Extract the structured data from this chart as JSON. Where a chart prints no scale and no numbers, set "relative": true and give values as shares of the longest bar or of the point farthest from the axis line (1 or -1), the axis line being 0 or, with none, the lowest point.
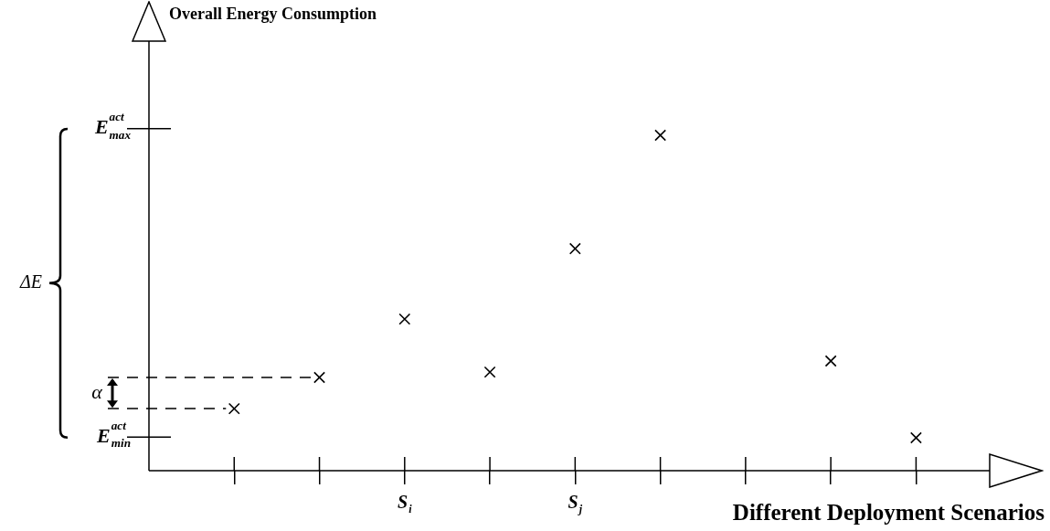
{
  "chart_data": {
    "type": "scatter",
    "xlabel": "Different Deployment Scenarios",
    "categories": [
      null,
      null,
      "S$_{i}$",
      null,
      "S$_{j}$",
      null,
      null,
      null,
      null
    ],
    "values": [
      0.185,
      0.278,
      0.452,
      0.294,
      0.662,
      1,
      null,
      0.327,
      0.098
    ],
    "color": "#000000",
    "relative": true,
    "marker": "cross",
    "ref_lines": [
      {
        "axis": "y",
        "value": 1.02,
        "label": "E$^{act}$$_{max}$"
      },
      {
        "axis": "y",
        "value": 0.1,
        "label": "E$^{act}$$_{min}$"
      },
      {
        "axis": "y",
        "value": 0.278,
        "line_style": "dashed"
      },
      {
        "axis": "y",
        "value": 0.185,
        "line_style": "dashed"
      }
    ],
    "annotations": [
      "ΔE",
      "α",
      "Overall Energy Consumption"
    ]
  }
}
